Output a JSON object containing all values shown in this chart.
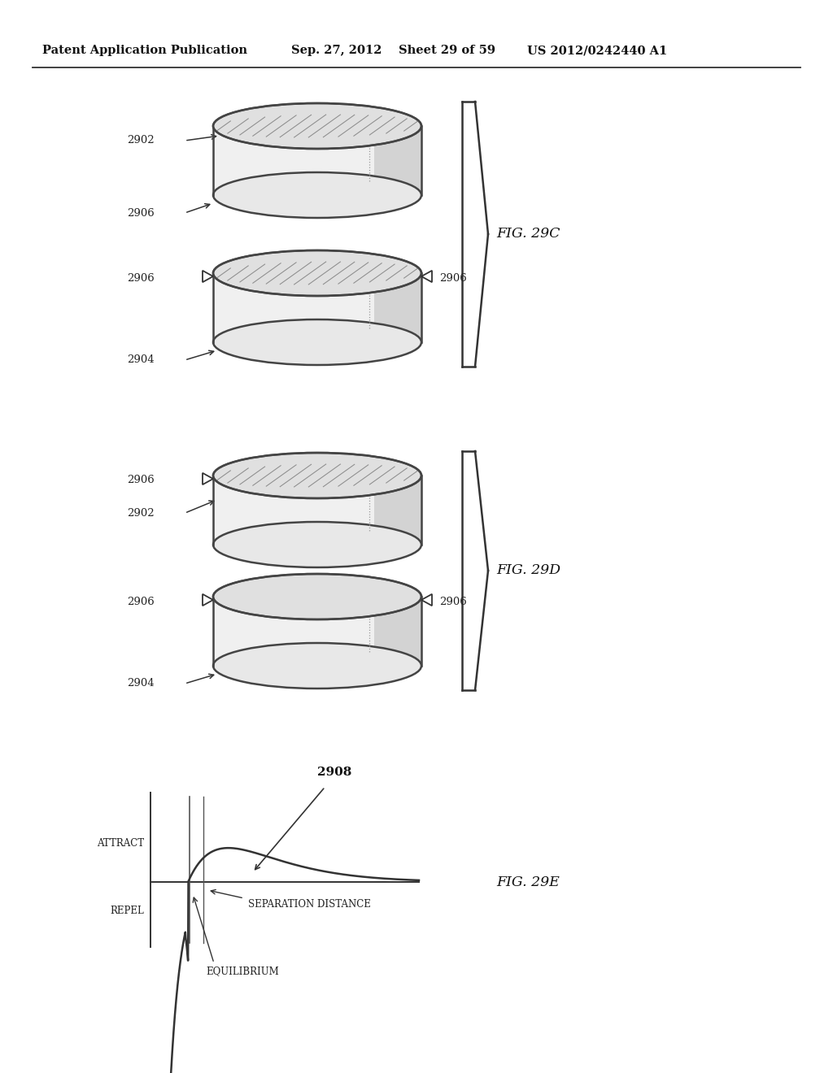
{
  "bg_color": "#ffffff",
  "header_text": "Patent Application Publication",
  "header_date": "Sep. 27, 2012",
  "header_sheet": "Sheet 29 of 59",
  "header_patent": "US 2012/0242440 A1",
  "fig29c_label": "FIG. 29C",
  "fig29d_label": "FIG. 29D",
  "fig29e_label": "FIG. 29E",
  "label_2902": "2902",
  "label_2904": "2904",
  "label_2906": "2906",
  "label_2908": "2908",
  "attract_label": "ATTRACT",
  "repel_label": "REPEL",
  "sep_dist_label": "SEPARATION DISTANCE",
  "equilibrium_label": "EQUILIBRIUM"
}
